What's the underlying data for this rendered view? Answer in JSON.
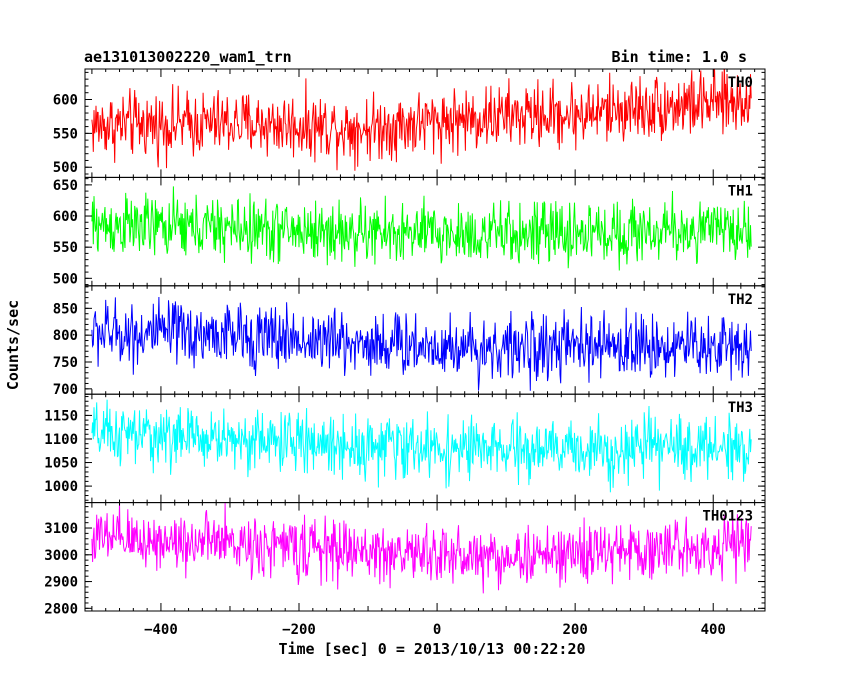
{
  "chart_data": {
    "type": "line",
    "title": "ae131013002220_wam1_trn",
    "bin_time_label": "Bin time: 1.0 s",
    "xlabel": "Time [sec] 0 = 2013/10/13 00:22:20",
    "ylabel": "Counts/sec",
    "x_range": [
      -510,
      475
    ],
    "x_ticks": [
      -400,
      -200,
      0,
      200,
      400
    ],
    "x_tick_labels": [
      "−400",
      "−200",
      "0",
      "200",
      "400"
    ],
    "x_data_range": [
      -500,
      455
    ],
    "bin_seconds": 1.0,
    "grid": false,
    "panels": [
      {
        "name": "TH0",
        "color": "#ff0000",
        "ylim": [
          485,
          645
        ],
        "y_ticks": [
          500,
          550,
          600
        ],
        "y_tick_labels": [
          "500",
          "550",
          "600"
        ],
        "trend": [
          [
            -500,
            562
          ],
          [
            -300,
            565
          ],
          [
            -100,
            558
          ],
          [
            0,
            568
          ],
          [
            100,
            575
          ],
          [
            200,
            578
          ],
          [
            300,
            588
          ],
          [
            455,
            598
          ]
        ],
        "noise_sd": 24
      },
      {
        "name": "TH1",
        "color": "#00ff00",
        "ylim": [
          488,
          662
        ],
        "y_ticks": [
          500,
          550,
          600,
          650
        ],
        "y_tick_labels": [
          "500",
          "550",
          "600",
          "650"
        ],
        "trend": [
          [
            -500,
            585
          ],
          [
            -300,
            580
          ],
          [
            -100,
            572
          ],
          [
            100,
            570
          ],
          [
            300,
            575
          ],
          [
            455,
            578
          ]
        ],
        "noise_sd": 25
      },
      {
        "name": "TH2",
        "color": "#0000ff",
        "ylim": [
          690,
          892
        ],
        "y_ticks": [
          700,
          750,
          800,
          850
        ],
        "y_tick_labels": [
          "700",
          "750",
          "800",
          "850"
        ],
        "trend": [
          [
            -500,
            805
          ],
          [
            -300,
            800
          ],
          [
            -100,
            785
          ],
          [
            100,
            775
          ],
          [
            300,
            780
          ],
          [
            455,
            780
          ]
        ],
        "noise_sd": 30
      },
      {
        "name": "TH3",
        "color": "#00ffff",
        "ylim": [
          965,
          1195
        ],
        "y_ticks": [
          1000,
          1050,
          1100,
          1150
        ],
        "y_tick_labels": [
          "1000",
          "1050",
          "1100",
          "1150"
        ],
        "trend": [
          [
            -500,
            1110
          ],
          [
            -300,
            1100
          ],
          [
            -100,
            1085
          ],
          [
            100,
            1075
          ],
          [
            300,
            1080
          ],
          [
            455,
            1085
          ]
        ],
        "noise_sd": 32
      },
      {
        "name": "TH0123",
        "color": "#ff00ff",
        "ylim": [
          2790,
          3195
        ],
        "y_ticks": [
          2800,
          2900,
          3000,
          3100
        ],
        "y_tick_labels": [
          "2800",
          "2900",
          "3000",
          "3100"
        ],
        "trend": [
          [
            -500,
            3060
          ],
          [
            -300,
            3045
          ],
          [
            -100,
            3010
          ],
          [
            100,
            2990
          ],
          [
            250,
            3010
          ],
          [
            455,
            3040
          ]
        ],
        "noise_sd": 55
      }
    ]
  }
}
